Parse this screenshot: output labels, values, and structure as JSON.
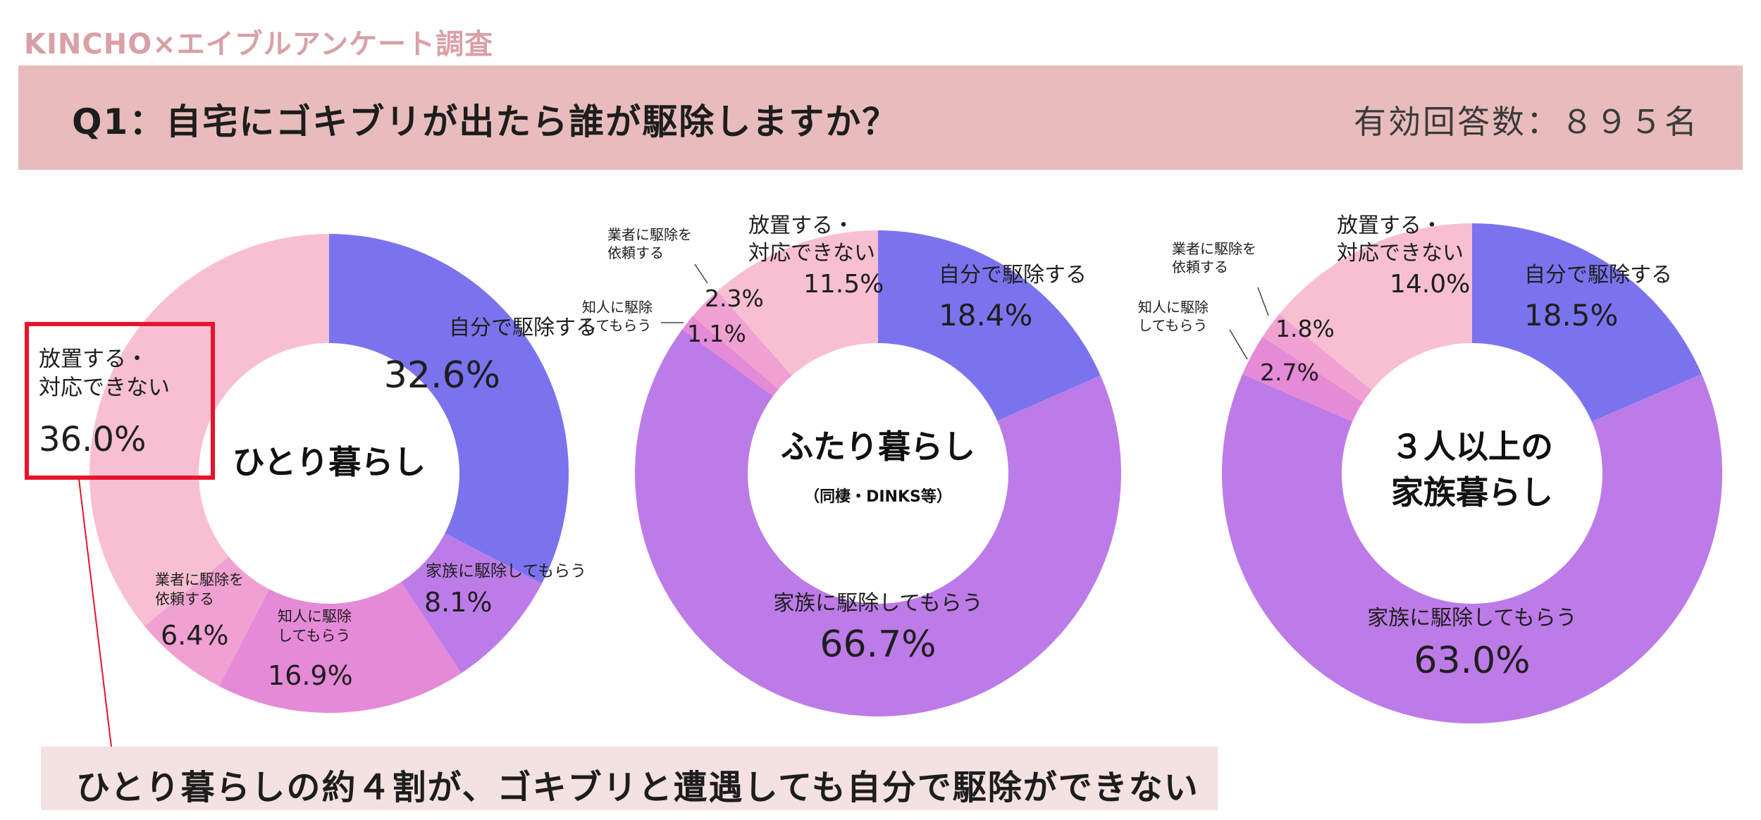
{
  "header": {
    "brand": "KINCHO×エイブルアンケート調査",
    "question": "Q1：自宅にゴキブリが出たら誰が駆除しますか？",
    "respondents": "有効回答数：８９５名"
  },
  "footer": {
    "conclusion": "ひとり暮らしの約４割が、ゴキブリと遭遇しても自分で駆除ができない"
  },
  "colors": {
    "self": "#7b73ee",
    "family": "#bd7be8",
    "acquaintance": "#e58ad6",
    "pro": "#f0a1d2",
    "leave": "#f8bfd3",
    "highlight": "#e8132b"
  },
  "chart_data": [
    {
      "type": "pie",
      "center_label": [
        "ひとり暮らし"
      ],
      "categories": [
        "自分で駆除する",
        "家族に駆除してもらう",
        "知人に駆除してもらう",
        "業者に駆除を依頼する",
        "放置する・対応できない"
      ],
      "display_labels": [
        [
          "自分で駆除する"
        ],
        [
          "家族に駆除してもらう"
        ],
        [
          "知人に駆除",
          "してもらう"
        ],
        [
          "業者に駆除を",
          "依頼する"
        ],
        [
          "放置する・",
          "対応できない"
        ]
      ],
      "values": [
        32.6,
        8.1,
        16.9,
        6.4,
        36.0
      ],
      "value_labels": [
        "32.6%",
        "8.1%",
        "16.9%",
        "6.4%",
        "36.0%"
      ],
      "highlight": "放置する・対応できない"
    },
    {
      "type": "pie",
      "center_label": [
        "ふたり暮らし",
        "（同棲・DINKS等）"
      ],
      "categories": [
        "自分で駆除する",
        "家族に駆除してもらう",
        "知人に駆除してもらう",
        "業者に駆除を依頼する",
        "放置する・対応できない"
      ],
      "display_labels": [
        [
          "自分で駆除する"
        ],
        [
          "家族に駆除してもらう"
        ],
        [
          "知人に駆除",
          "してもらう"
        ],
        [
          "業者に駆除を",
          "依頼する"
        ],
        [
          "放置する・",
          "対応できない"
        ]
      ],
      "values": [
        18.4,
        66.7,
        1.1,
        2.3,
        11.5
      ],
      "value_labels": [
        "18.4%",
        "66.7%",
        "1.1%",
        "2.3%",
        "11.5%"
      ]
    },
    {
      "type": "pie",
      "center_label": [
        "３人以上の",
        "家族暮らし"
      ],
      "categories": [
        "自分で駆除する",
        "家族に駆除してもらう",
        "知人に駆除してもらう",
        "業者に駆除を依頼する",
        "放置する・対応できない"
      ],
      "display_labels": [
        [
          "自分で駆除する"
        ],
        [
          "家族に駆除してもらう"
        ],
        [
          "知人に駆除",
          "してもらう"
        ],
        [
          "業者に駆除を",
          "依頼する"
        ],
        [
          "放置する・",
          "対応できない"
        ]
      ],
      "values": [
        18.5,
        63.0,
        2.7,
        1.8,
        14.0
      ],
      "value_labels": [
        "18.5%",
        "63.0%",
        "2.7%",
        "1.8%",
        "14.0%"
      ]
    }
  ]
}
